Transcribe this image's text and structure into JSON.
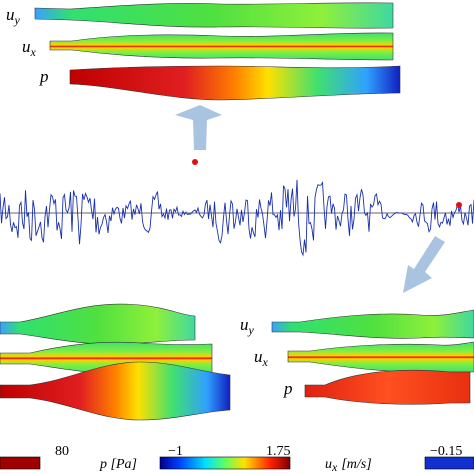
{
  "top_panel": {
    "labels": [
      {
        "symbol": "u",
        "subscript": "y"
      },
      {
        "symbol": "u",
        "subscript": "x"
      },
      {
        "symbol": "p"
      }
    ]
  },
  "bottom_right_panel": {
    "labels": [
      {
        "symbol": "u",
        "subscript": "y"
      },
      {
        "symbol": "u",
        "subscript": "x"
      },
      {
        "symbol": "p"
      }
    ]
  },
  "colorbars": {
    "pressure": {
      "max_label": "80",
      "title": "p [Pa]"
    },
    "ux": {
      "min_label": "−1",
      "max_label": "1.75",
      "title_symbol": "u",
      "title_subscript": "x",
      "title_unit": "[m/s]"
    },
    "uy": {
      "min_label": "−0.15"
    }
  }
}
